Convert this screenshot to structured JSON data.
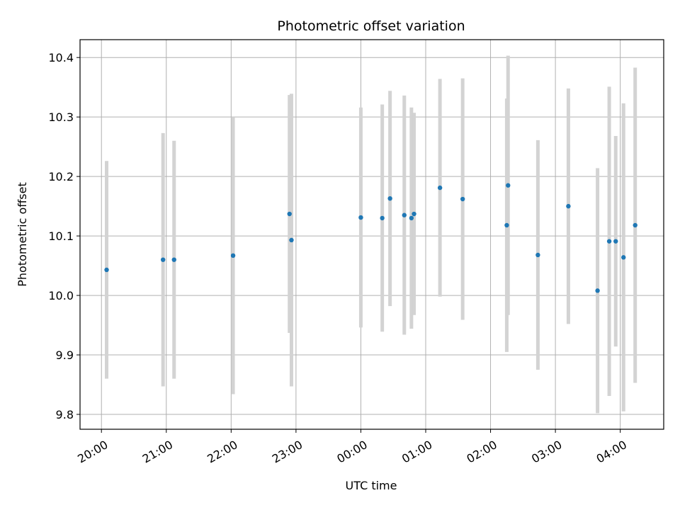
{
  "chart_data": {
    "type": "scatter",
    "title": "Photometric offset variation",
    "xlabel": "UTC time",
    "ylabel": "Photometric offset",
    "x_unit": "hours",
    "xlim": [
      -0.33,
      8.67
    ],
    "ylim": [
      9.775,
      10.43
    ],
    "xticks": [
      0,
      1,
      2,
      3,
      4,
      5,
      6,
      7,
      8
    ],
    "xtick_labels": [
      "20:00",
      "21:00",
      "22:00",
      "23:00",
      "00:00",
      "01:00",
      "02:00",
      "03:00",
      "04:00"
    ],
    "yticks": [
      9.8,
      9.9,
      10.0,
      10.1,
      10.2,
      10.3,
      10.4
    ],
    "ytick_labels": [
      "9.8",
      "9.9",
      "10.0",
      "10.1",
      "10.2",
      "10.3",
      "10.4"
    ],
    "grid": true,
    "colors": {
      "point": "#1f77b4",
      "errorbar": "#d3d3d3",
      "grid": "#b0b0b0"
    },
    "series": [
      {
        "points": [
          {
            "x": 0.08,
            "y": 10.043,
            "yerr": 0.183
          },
          {
            "x": 0.95,
            "y": 10.06,
            "yerr": 0.213
          },
          {
            "x": 1.12,
            "y": 10.06,
            "yerr": 0.2
          },
          {
            "x": 2.03,
            "y": 10.067,
            "yerr": 0.233
          },
          {
            "x": 2.9,
            "y": 10.137,
            "yerr": 0.2
          },
          {
            "x": 2.93,
            "y": 10.093,
            "yerr": 0.246
          },
          {
            "x": 4.0,
            "y": 10.131,
            "yerr": 0.185
          },
          {
            "x": 4.33,
            "y": 10.13,
            "yerr": 0.191
          },
          {
            "x": 4.45,
            "y": 10.163,
            "yerr": 0.181
          },
          {
            "x": 4.67,
            "y": 10.135,
            "yerr": 0.201
          },
          {
            "x": 4.78,
            "y": 10.13,
            "yerr": 0.186
          },
          {
            "x": 4.82,
            "y": 10.137,
            "yerr": 0.17
          },
          {
            "x": 5.22,
            "y": 10.181,
            "yerr": 0.183
          },
          {
            "x": 5.57,
            "y": 10.162,
            "yerr": 0.203
          },
          {
            "x": 6.25,
            "y": 10.118,
            "yerr": 0.213
          },
          {
            "x": 6.27,
            "y": 10.185,
            "yerr": 0.218
          },
          {
            "x": 6.73,
            "y": 10.068,
            "yerr": 0.193
          },
          {
            "x": 7.2,
            "y": 10.15,
            "yerr": 0.198
          },
          {
            "x": 7.65,
            "y": 10.008,
            "yerr": 0.206
          },
          {
            "x": 7.83,
            "y": 10.091,
            "yerr": 0.26
          },
          {
            "x": 7.93,
            "y": 10.091,
            "yerr": 0.177
          },
          {
            "x": 8.05,
            "y": 10.064,
            "yerr": 0.259
          },
          {
            "x": 8.23,
            "y": 10.118,
            "yerr": 0.265
          }
        ]
      }
    ]
  }
}
